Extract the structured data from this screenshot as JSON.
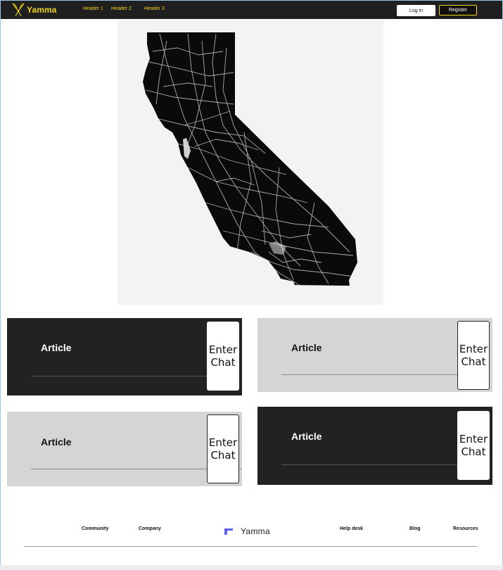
{
  "navbar": {
    "brand": "Yamma",
    "links": [
      "Header 1",
      "Header 2",
      "Header 3"
    ],
    "login_label": "Log in",
    "register_label": "Register",
    "accent_color": "#f2d21b"
  },
  "map": {
    "icon": "california-road-map"
  },
  "cards": [
    {
      "title": "Article",
      "button_label": "Enter\nChat",
      "theme": "dark"
    },
    {
      "title": "Article",
      "button_label": "Enter\nChat",
      "theme": "light"
    },
    {
      "title": "Article",
      "button_label": "Enter\nChat",
      "theme": "light"
    },
    {
      "title": "Article",
      "button_label": "Enter\nChat",
      "theme": "dark"
    }
  ],
  "footer": {
    "links_left": [
      "Community",
      "Company"
    ],
    "brand": "Yamma",
    "links_right": [
      "Help desk",
      "Blog",
      "Resources"
    ]
  }
}
